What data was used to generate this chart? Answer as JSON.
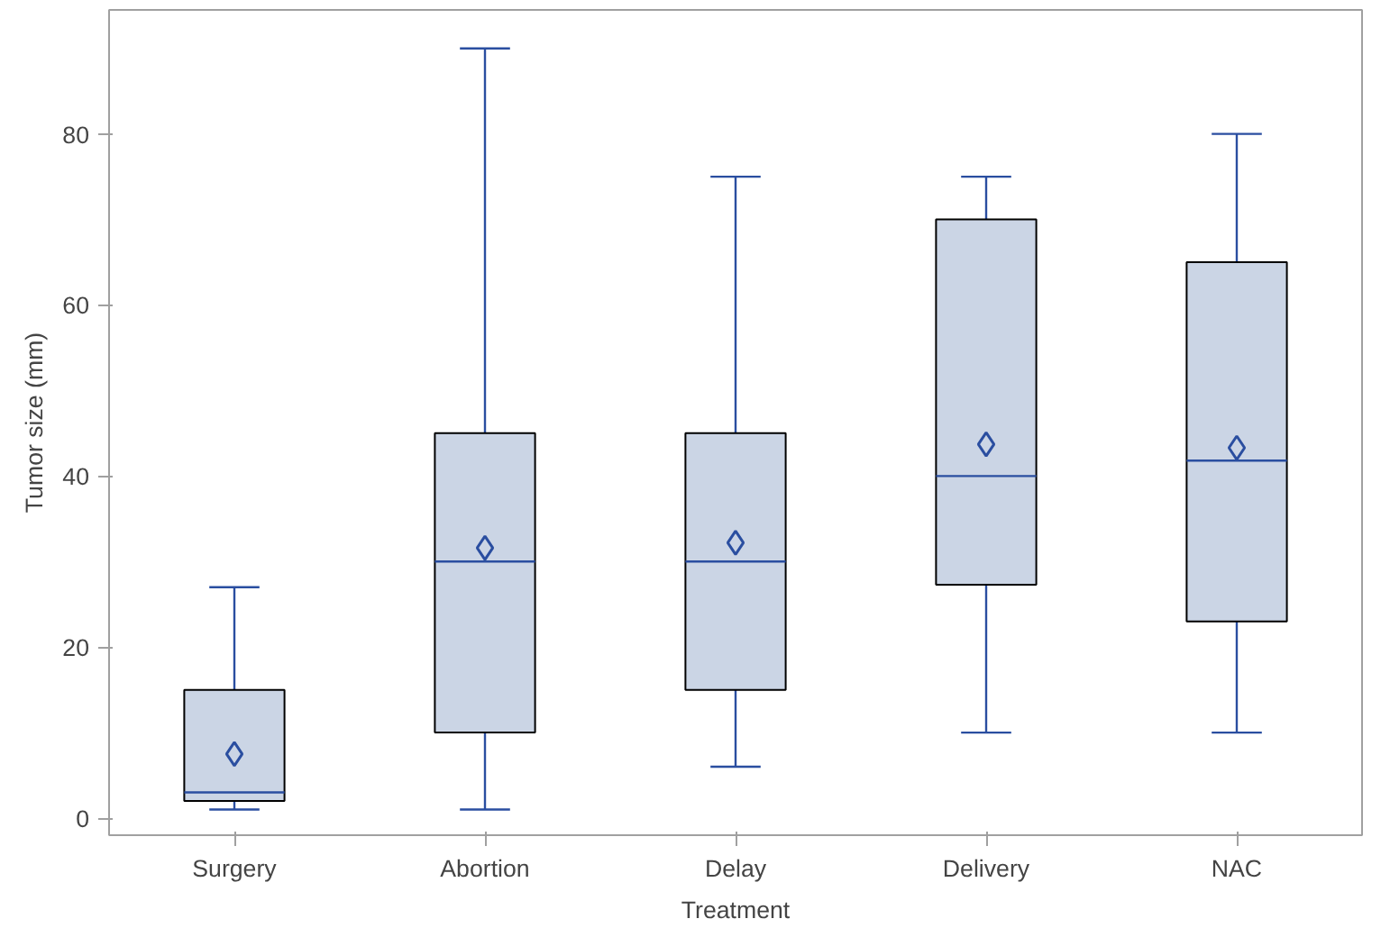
{
  "chart_data": {
    "type": "box",
    "xlabel": "Treatment",
    "ylabel": "Tumor size (mm)",
    "categories": [
      "Surgery",
      "Abortion",
      "Delay",
      "Delivery",
      "NAC"
    ],
    "ylim": [
      -2,
      94.5
    ],
    "yticks": [
      0,
      20,
      40,
      60,
      80
    ],
    "series": [
      {
        "color": "#cbd5e5",
        "boxes": [
          {
            "low": 1,
            "q1": 2,
            "median": 3,
            "q3": 15,
            "high": 27,
            "mean": 7.5
          },
          {
            "low": 1,
            "q1": 10,
            "median": 30,
            "q3": 45,
            "high": 90,
            "mean": 31.6
          },
          {
            "low": 6,
            "q1": 15,
            "median": 30,
            "q3": 45,
            "high": 75,
            "mean": 32.2
          },
          {
            "low": 10,
            "q1": 27.3,
            "median": 40,
            "q3": 70,
            "high": 75,
            "mean": 43.7
          },
          {
            "low": 10,
            "q1": 23,
            "median": 41.8,
            "q3": 65,
            "high": 80,
            "mean": 43.3
          }
        ]
      }
    ]
  }
}
